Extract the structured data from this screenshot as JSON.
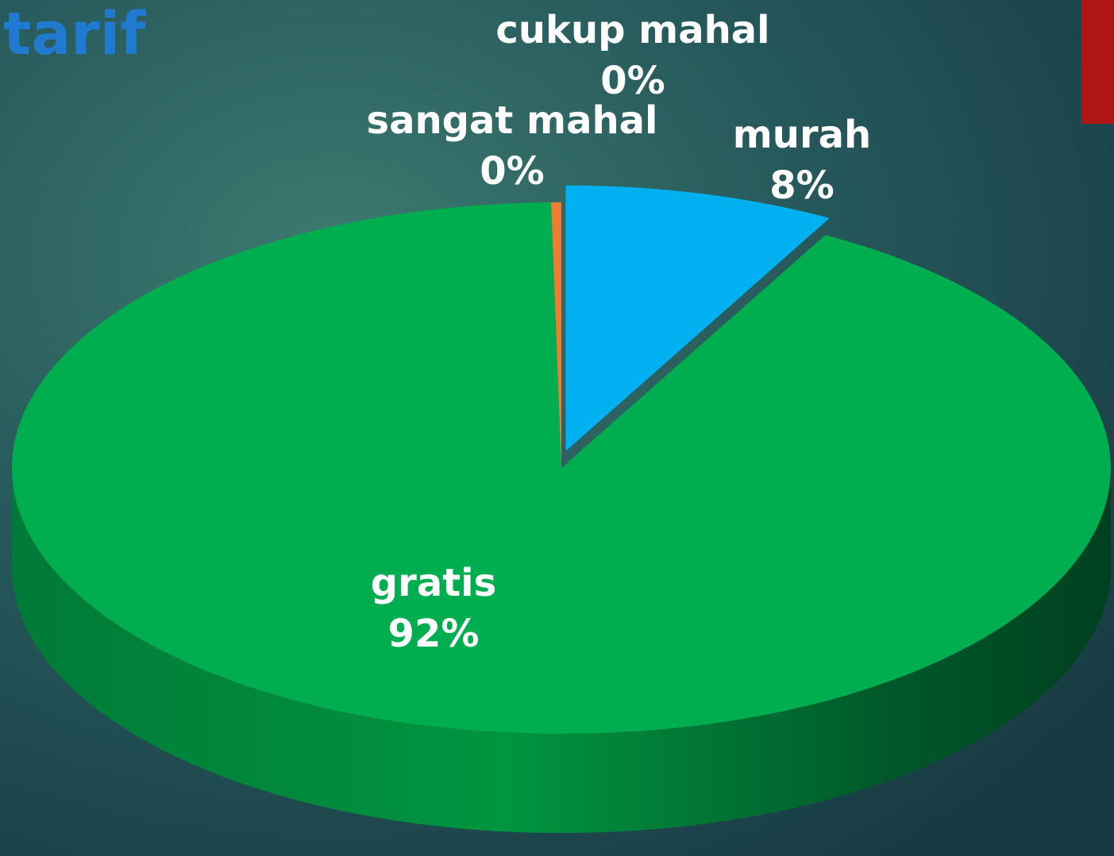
{
  "chart_data": {
    "type": "pie",
    "title": "tarif",
    "categories": [
      "murah",
      "gratis",
      "sangat mahal",
      "cukup mahal"
    ],
    "values": [
      8,
      92,
      0.3,
      0
    ],
    "value_labels": [
      "8%",
      "92%",
      "0%",
      "0%"
    ],
    "colors": [
      "#00b0f0",
      "#00ad4f",
      "#ed7d31",
      "#a5a5a5"
    ]
  }
}
